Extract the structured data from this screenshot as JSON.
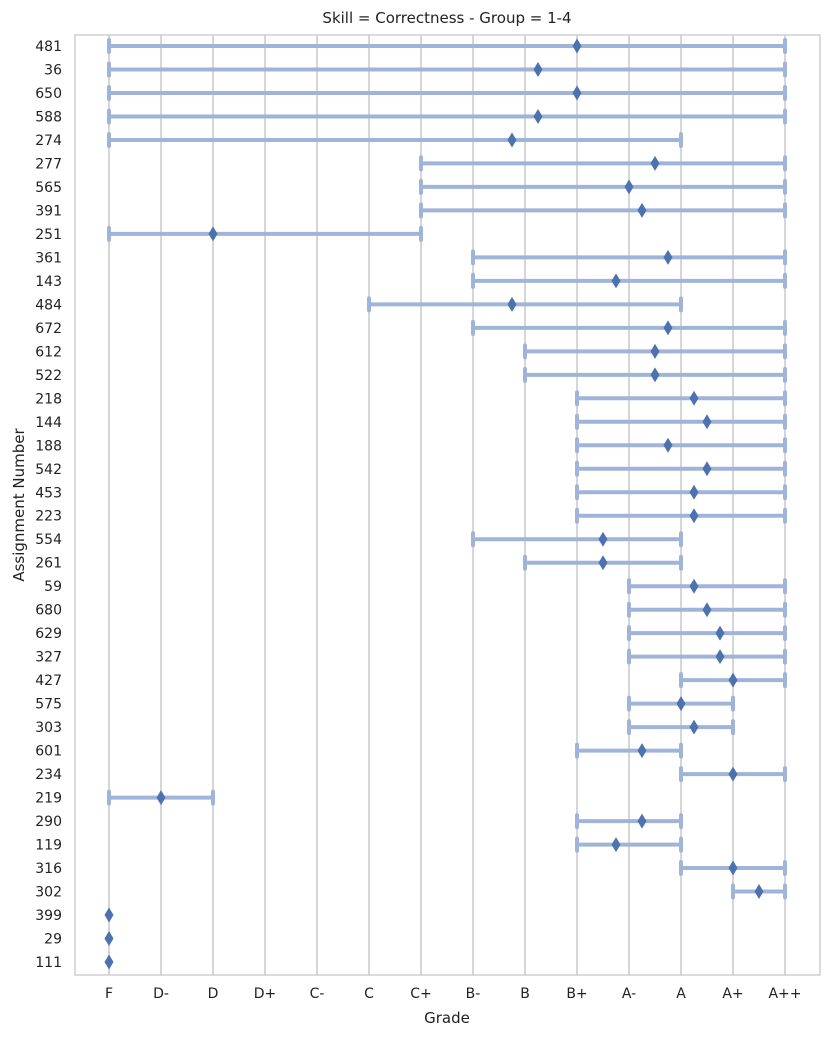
{
  "chart_data": {
    "type": "range-dot",
    "title": "Skill = Correctness - Group = 1-4",
    "xlabel": "Grade",
    "ylabel": "Assignment Number",
    "grades": [
      "F",
      "D-",
      "D",
      "D+",
      "C-",
      "C",
      "C+",
      "B-",
      "B",
      "B+",
      "A-",
      "A",
      "A+",
      "A++"
    ],
    "series": [
      {
        "assignment": "481",
        "min": 0,
        "max": 13,
        "mean": 9
      },
      {
        "assignment": "36",
        "min": 0,
        "max": 13,
        "mean": 8.25
      },
      {
        "assignment": "650",
        "min": 0,
        "max": 13,
        "mean": 9
      },
      {
        "assignment": "588",
        "min": 0,
        "max": 13,
        "mean": 8.25
      },
      {
        "assignment": "274",
        "min": 0,
        "max": 11,
        "mean": 7.75
      },
      {
        "assignment": "277",
        "min": 6,
        "max": 13,
        "mean": 10.5
      },
      {
        "assignment": "565",
        "min": 6,
        "max": 13,
        "mean": 10
      },
      {
        "assignment": "391",
        "min": 6,
        "max": 13,
        "mean": 10.25
      },
      {
        "assignment": "251",
        "min": 0,
        "max": 6,
        "mean": 2
      },
      {
        "assignment": "361",
        "min": 7,
        "max": 13,
        "mean": 10.75
      },
      {
        "assignment": "143",
        "min": 7,
        "max": 13,
        "mean": 9.75
      },
      {
        "assignment": "484",
        "min": 5,
        "max": 11,
        "mean": 7.75
      },
      {
        "assignment": "672",
        "min": 7,
        "max": 13,
        "mean": 10.75
      },
      {
        "assignment": "612",
        "min": 8,
        "max": 13,
        "mean": 10.5
      },
      {
        "assignment": "522",
        "min": 8,
        "max": 13,
        "mean": 10.5
      },
      {
        "assignment": "218",
        "min": 9,
        "max": 13,
        "mean": 11.25
      },
      {
        "assignment": "144",
        "min": 9,
        "max": 13,
        "mean": 11.5
      },
      {
        "assignment": "188",
        "min": 9,
        "max": 13,
        "mean": 10.75
      },
      {
        "assignment": "542",
        "min": 9,
        "max": 13,
        "mean": 11.5
      },
      {
        "assignment": "453",
        "min": 9,
        "max": 13,
        "mean": 11.25
      },
      {
        "assignment": "223",
        "min": 9,
        "max": 13,
        "mean": 11.25
      },
      {
        "assignment": "554",
        "min": 7,
        "max": 11,
        "mean": 9.5
      },
      {
        "assignment": "261",
        "min": 8,
        "max": 11,
        "mean": 9.5
      },
      {
        "assignment": "59",
        "min": 10,
        "max": 13,
        "mean": 11.25
      },
      {
        "assignment": "680",
        "min": 10,
        "max": 13,
        "mean": 11.5
      },
      {
        "assignment": "629",
        "min": 10,
        "max": 13,
        "mean": 11.75
      },
      {
        "assignment": "327",
        "min": 10,
        "max": 13,
        "mean": 11.75
      },
      {
        "assignment": "427",
        "min": 11,
        "max": 13,
        "mean": 12
      },
      {
        "assignment": "575",
        "min": 10,
        "max": 12,
        "mean": 11
      },
      {
        "assignment": "303",
        "min": 10,
        "max": 12,
        "mean": 11.25
      },
      {
        "assignment": "601",
        "min": 9,
        "max": 11,
        "mean": 10.25
      },
      {
        "assignment": "234",
        "min": 11,
        "max": 13,
        "mean": 12
      },
      {
        "assignment": "219",
        "min": 0,
        "max": 2,
        "mean": 1
      },
      {
        "assignment": "290",
        "min": 9,
        "max": 11,
        "mean": 10.25
      },
      {
        "assignment": "119",
        "min": 9,
        "max": 11,
        "mean": 9.75
      },
      {
        "assignment": "316",
        "min": 11,
        "max": 13,
        "mean": 12
      },
      {
        "assignment": "302",
        "min": 12,
        "max": 13,
        "mean": 12.5
      },
      {
        "assignment": "399",
        "min": 0,
        "max": 0,
        "mean": 0
      },
      {
        "assignment": "29",
        "min": 0,
        "max": 0,
        "mean": 0
      },
      {
        "assignment": "111",
        "min": 0,
        "max": 0,
        "mean": 0
      }
    ]
  }
}
